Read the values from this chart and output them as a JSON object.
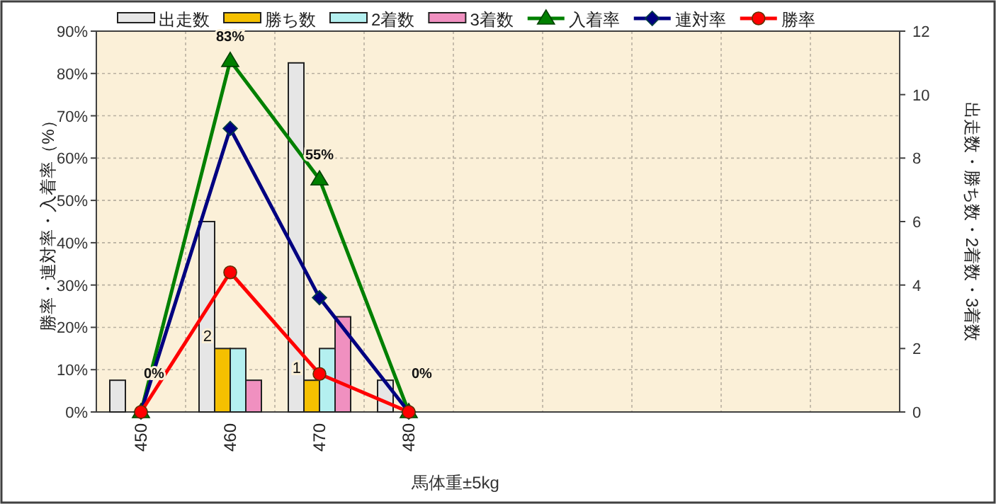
{
  "chart_data": {
    "type": "bar",
    "xlabel": "馬体重±5kg",
    "ylabel": "勝率・連対率・入着率（%）",
    "y2label": "出走数・勝ち数・2着数・3着数",
    "categories": [
      "450",
      "460",
      "470",
      "480",
      null,
      null,
      null,
      null,
      null
    ],
    "ylim": [
      0,
      90
    ],
    "yticks": [
      {
        "value": 0,
        "label": "0%"
      },
      {
        "value": 10,
        "label": "10%"
      },
      {
        "value": 20,
        "label": "20%"
      },
      {
        "value": 30,
        "label": "30%"
      },
      {
        "value": 40,
        "label": "40%"
      },
      {
        "value": 50,
        "label": "50%"
      },
      {
        "value": 60,
        "label": "60%"
      },
      {
        "value": 70,
        "label": "70%"
      },
      {
        "value": 80,
        "label": "80%"
      },
      {
        "value": 90,
        "label": "90%"
      }
    ],
    "y2lim": [
      0,
      12
    ],
    "y2ticks": [
      0,
      2,
      4,
      6,
      8,
      10,
      12
    ],
    "grid": true,
    "legend": "top",
    "series": [
      {
        "name": "出走数",
        "axis": "y2",
        "color": "#e6e6e6",
        "values": [
          1,
          6,
          11,
          1,
          null,
          null,
          null,
          null,
          null
        ]
      },
      {
        "name": "勝ち数",
        "axis": "y2",
        "color": "#f5c000",
        "values": [
          0,
          2,
          1,
          0,
          null,
          null,
          null,
          null,
          null
        ],
        "value_labels": [
          null,
          "2",
          "1",
          null,
          null,
          null,
          null,
          null,
          null
        ]
      },
      {
        "name": "2着数",
        "axis": "y2",
        "color": "#b4f0f0",
        "values": [
          0,
          2,
          2,
          0,
          null,
          null,
          null,
          null,
          null
        ]
      },
      {
        "name": "3着数",
        "axis": "y2",
        "color": "#f090c0",
        "values": [
          0,
          1,
          3,
          0,
          null,
          null,
          null,
          null,
          null
        ]
      },
      {
        "name": "入着率",
        "type": "line",
        "marker": "triangle",
        "color": "#008000",
        "values": [
          0,
          83,
          55,
          0,
          null,
          null,
          null,
          null,
          null
        ],
        "value_labels": [
          "0%",
          "83%",
          "55%",
          "0%",
          null,
          null,
          null,
          null,
          null
        ]
      },
      {
        "name": "連対率",
        "type": "line",
        "marker": "diamond",
        "color": "#000080",
        "values": [
          0,
          67,
          27,
          0,
          null,
          null,
          null,
          null,
          null
        ]
      },
      {
        "name": "勝率",
        "type": "line",
        "marker": "circle",
        "color": "#ff0000",
        "values": [
          0,
          33,
          9,
          0,
          null,
          null,
          null,
          null,
          null
        ]
      }
    ]
  }
}
